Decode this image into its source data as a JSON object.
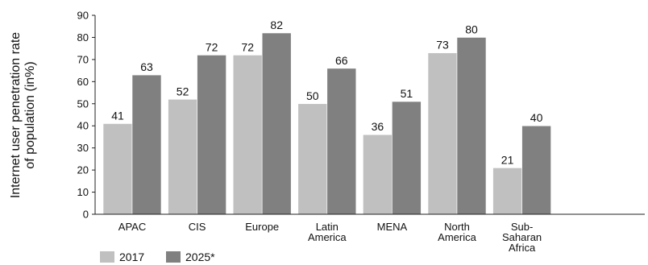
{
  "chart_data": {
    "type": "bar",
    "title": "",
    "xlabel": "",
    "ylabel_lines": [
      "Internet user penetration rate",
      "of population (in%)"
    ],
    "ylim": [
      0,
      90
    ],
    "yticks": [
      0,
      10,
      20,
      30,
      40,
      50,
      60,
      70,
      80,
      90
    ],
    "grid": false,
    "legend_position": "bottom-left",
    "categories": [
      [
        "APAC"
      ],
      [
        "CIS"
      ],
      [
        "Europe"
      ],
      [
        "Latin",
        "America"
      ],
      [
        "MENA"
      ],
      [
        "North",
        "America"
      ],
      [
        "Sub-",
        "Saharan",
        "Africa"
      ]
    ],
    "series": [
      {
        "name": "2017",
        "color": "#c0c0c0",
        "values": [
          41,
          52,
          72,
          50,
          36,
          73,
          21
        ]
      },
      {
        "name": "2025*",
        "color": "#808080",
        "values": [
          63,
          72,
          82,
          66,
          51,
          80,
          40
        ]
      }
    ]
  }
}
